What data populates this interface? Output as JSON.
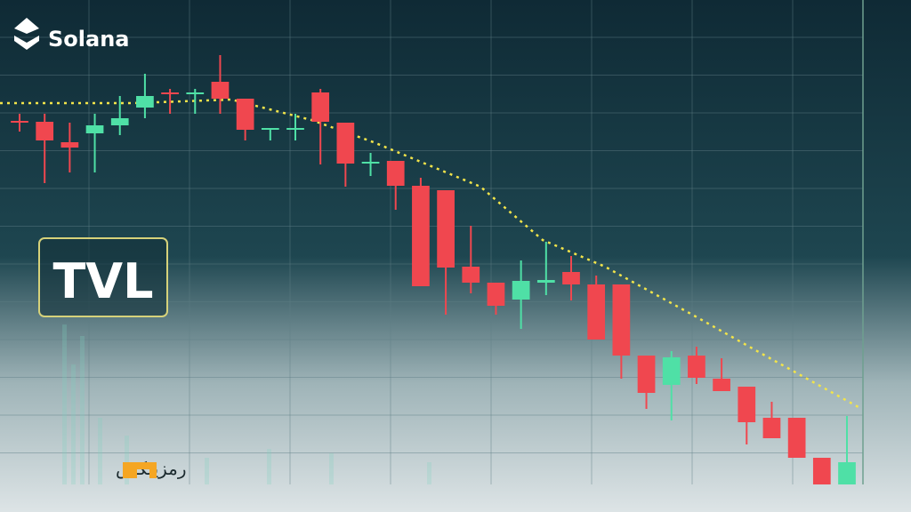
{
  "brand": "Solana",
  "badge": "TVL",
  "watermark": "رمزینکس",
  "chart_data": {
    "type": "candlestick",
    "up_color": "#4fe0a6",
    "down_color": "#f0474f",
    "ylim": [
      0,
      530
    ],
    "open": [
      409,
      408,
      385,
      395,
      404,
      424,
      441,
      439,
      453,
      434,
      399,
      399,
      441,
      407,
      361,
      364,
      336,
      331,
      245,
      227,
      208,
      227,
      239,
      225,
      225,
      145,
      112,
      145,
      119,
      110,
      75,
      75,
      30,
      0
    ],
    "high": [
      417,
      417,
      407,
      417,
      437,
      462,
      445,
      445,
      483,
      434,
      401,
      417,
      445,
      407,
      373,
      364,
      345,
      331,
      291,
      227,
      252,
      273,
      257,
      235,
      225,
      145,
      150,
      155,
      142,
      110,
      93,
      75,
      30,
      77
    ],
    "low": [
      397,
      339,
      351,
      351,
      393,
      412,
      417,
      417,
      417,
      387,
      387,
      387,
      360,
      335,
      347,
      309,
      223,
      191,
      215,
      191,
      175,
      213,
      207,
      163,
      119,
      85,
      72,
      113,
      105,
      45,
      52,
      30,
      0,
      0
    ],
    "close": [
      407,
      387,
      379,
      404,
      412,
      437,
      439,
      441,
      434,
      399,
      401,
      401,
      408,
      361,
      363,
      336,
      223,
      244,
      227,
      201,
      229,
      230,
      225,
      163,
      145,
      103,
      143,
      120,
      105,
      70,
      52,
      30,
      0,
      25
    ]
  }
}
